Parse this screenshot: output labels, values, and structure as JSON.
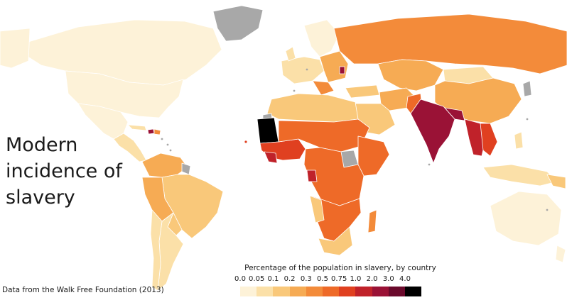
{
  "title": "Modern\nincidence of\nslavery",
  "source_note": "Data from the Walk Free Foundation (2013)",
  "legend": {
    "title": "Percentage of the population in slavery, by country",
    "ticks": [
      "0.0",
      "0.05",
      "0.1",
      "0.2",
      "0.3",
      "0.5",
      "0.75",
      "1.0",
      "2.0",
      "3.0",
      "4.0"
    ],
    "colors": [
      "#fdf2d8",
      "#fbe0a8",
      "#f9c87a",
      "#f6ab54",
      "#f38b3a",
      "#ee6a28",
      "#e04020",
      "#c0222a",
      "#9a1236",
      "#6a0a2c",
      "#000000"
    ],
    "no_data_color": "#a8a8a8"
  }
}
